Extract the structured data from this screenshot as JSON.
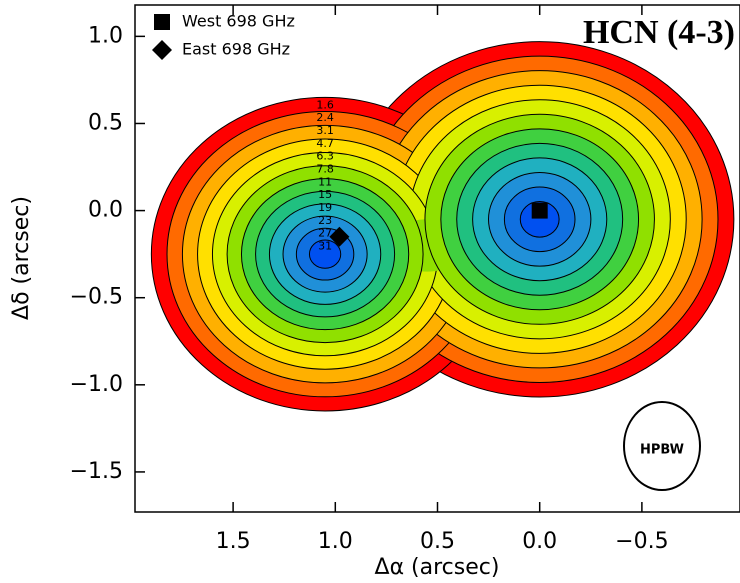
{
  "chart_data": {
    "type": "contour",
    "title": "HCN (4-3)",
    "x_label": "Δα (arcsec)",
    "y_label": "Δδ (arcsec)",
    "xlim": [
      1.98,
      -0.98
    ],
    "ylim": [
      -1.73,
      1.18
    ],
    "xticks": [
      {
        "value": 1.5,
        "label": "1.5"
      },
      {
        "value": 1.0,
        "label": "1.0"
      },
      {
        "value": 0.5,
        "label": "0.5"
      },
      {
        "value": 0.0,
        "label": "0.0"
      },
      {
        "value": -0.5,
        "label": "−0.5"
      }
    ],
    "yticks": [
      {
        "value": 1.0,
        "label": "1.0"
      },
      {
        "value": 0.5,
        "label": "0.5"
      },
      {
        "value": 0.0,
        "label": "0.0"
      },
      {
        "value": -0.5,
        "label": "−0.5"
      },
      {
        "value": -1.0,
        "label": "−1.0"
      },
      {
        "value": -1.5,
        "label": "−1.5"
      }
    ],
    "contour_levels": [
      1.6,
      2.4,
      3.1,
      4.7,
      6.3,
      7.8,
      11,
      15,
      19,
      23,
      27,
      31
    ],
    "colors": [
      "#ff0000",
      "#ff6a00",
      "#ffb000",
      "#ffe000",
      "#d8f000",
      "#90e000",
      "#40d040",
      "#20c080",
      "#20b0c0",
      "#2090d8",
      "#1070e0",
      "#0050f0"
    ],
    "markers": [
      {
        "name": "West 698 GHz",
        "shape": "square",
        "x": 0.0,
        "y": 0.0
      },
      {
        "name": "East 698 GHz",
        "shape": "diamond",
        "x": 0.98,
        "y": -0.15
      }
    ],
    "beam_label": "HPBW"
  }
}
